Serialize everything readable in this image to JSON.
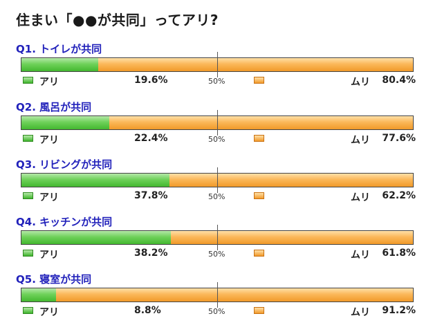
{
  "title": "住まい「●●が共同」ってアリ?",
  "labels": {
    "ari": "アリ",
    "muri": "ムリ",
    "mid": "50%"
  },
  "colors": {
    "ari": "#5cc84a",
    "muri": "#f6a93e",
    "question_label": "#2222bb"
  },
  "chart_data": {
    "type": "bar",
    "orientation": "horizontal",
    "stacked": true,
    "title": "住まい「●●が共同」ってアリ?",
    "categories": [
      "Q1. トイレが共同",
      "Q2. 風呂が共同",
      "Q3. リビングが共同",
      "Q4. キッチンが共同",
      "Q5. 寝室が共同"
    ],
    "series": [
      {
        "name": "アリ",
        "values": [
          19.6,
          22.4,
          37.8,
          38.2,
          8.8
        ]
      },
      {
        "name": "ムリ",
        "values": [
          80.4,
          77.6,
          62.2,
          61.8,
          91.2
        ]
      }
    ],
    "value_labels": {
      "ari": [
        "19.6%",
        "22.4%",
        "37.8%",
        "38.2%",
        "8.8%"
      ],
      "muri": [
        "80.4%",
        "77.6%",
        "62.2%",
        "61.8%",
        "91.2%"
      ]
    },
    "xlim": [
      0,
      100
    ],
    "reference_line": "50%"
  }
}
